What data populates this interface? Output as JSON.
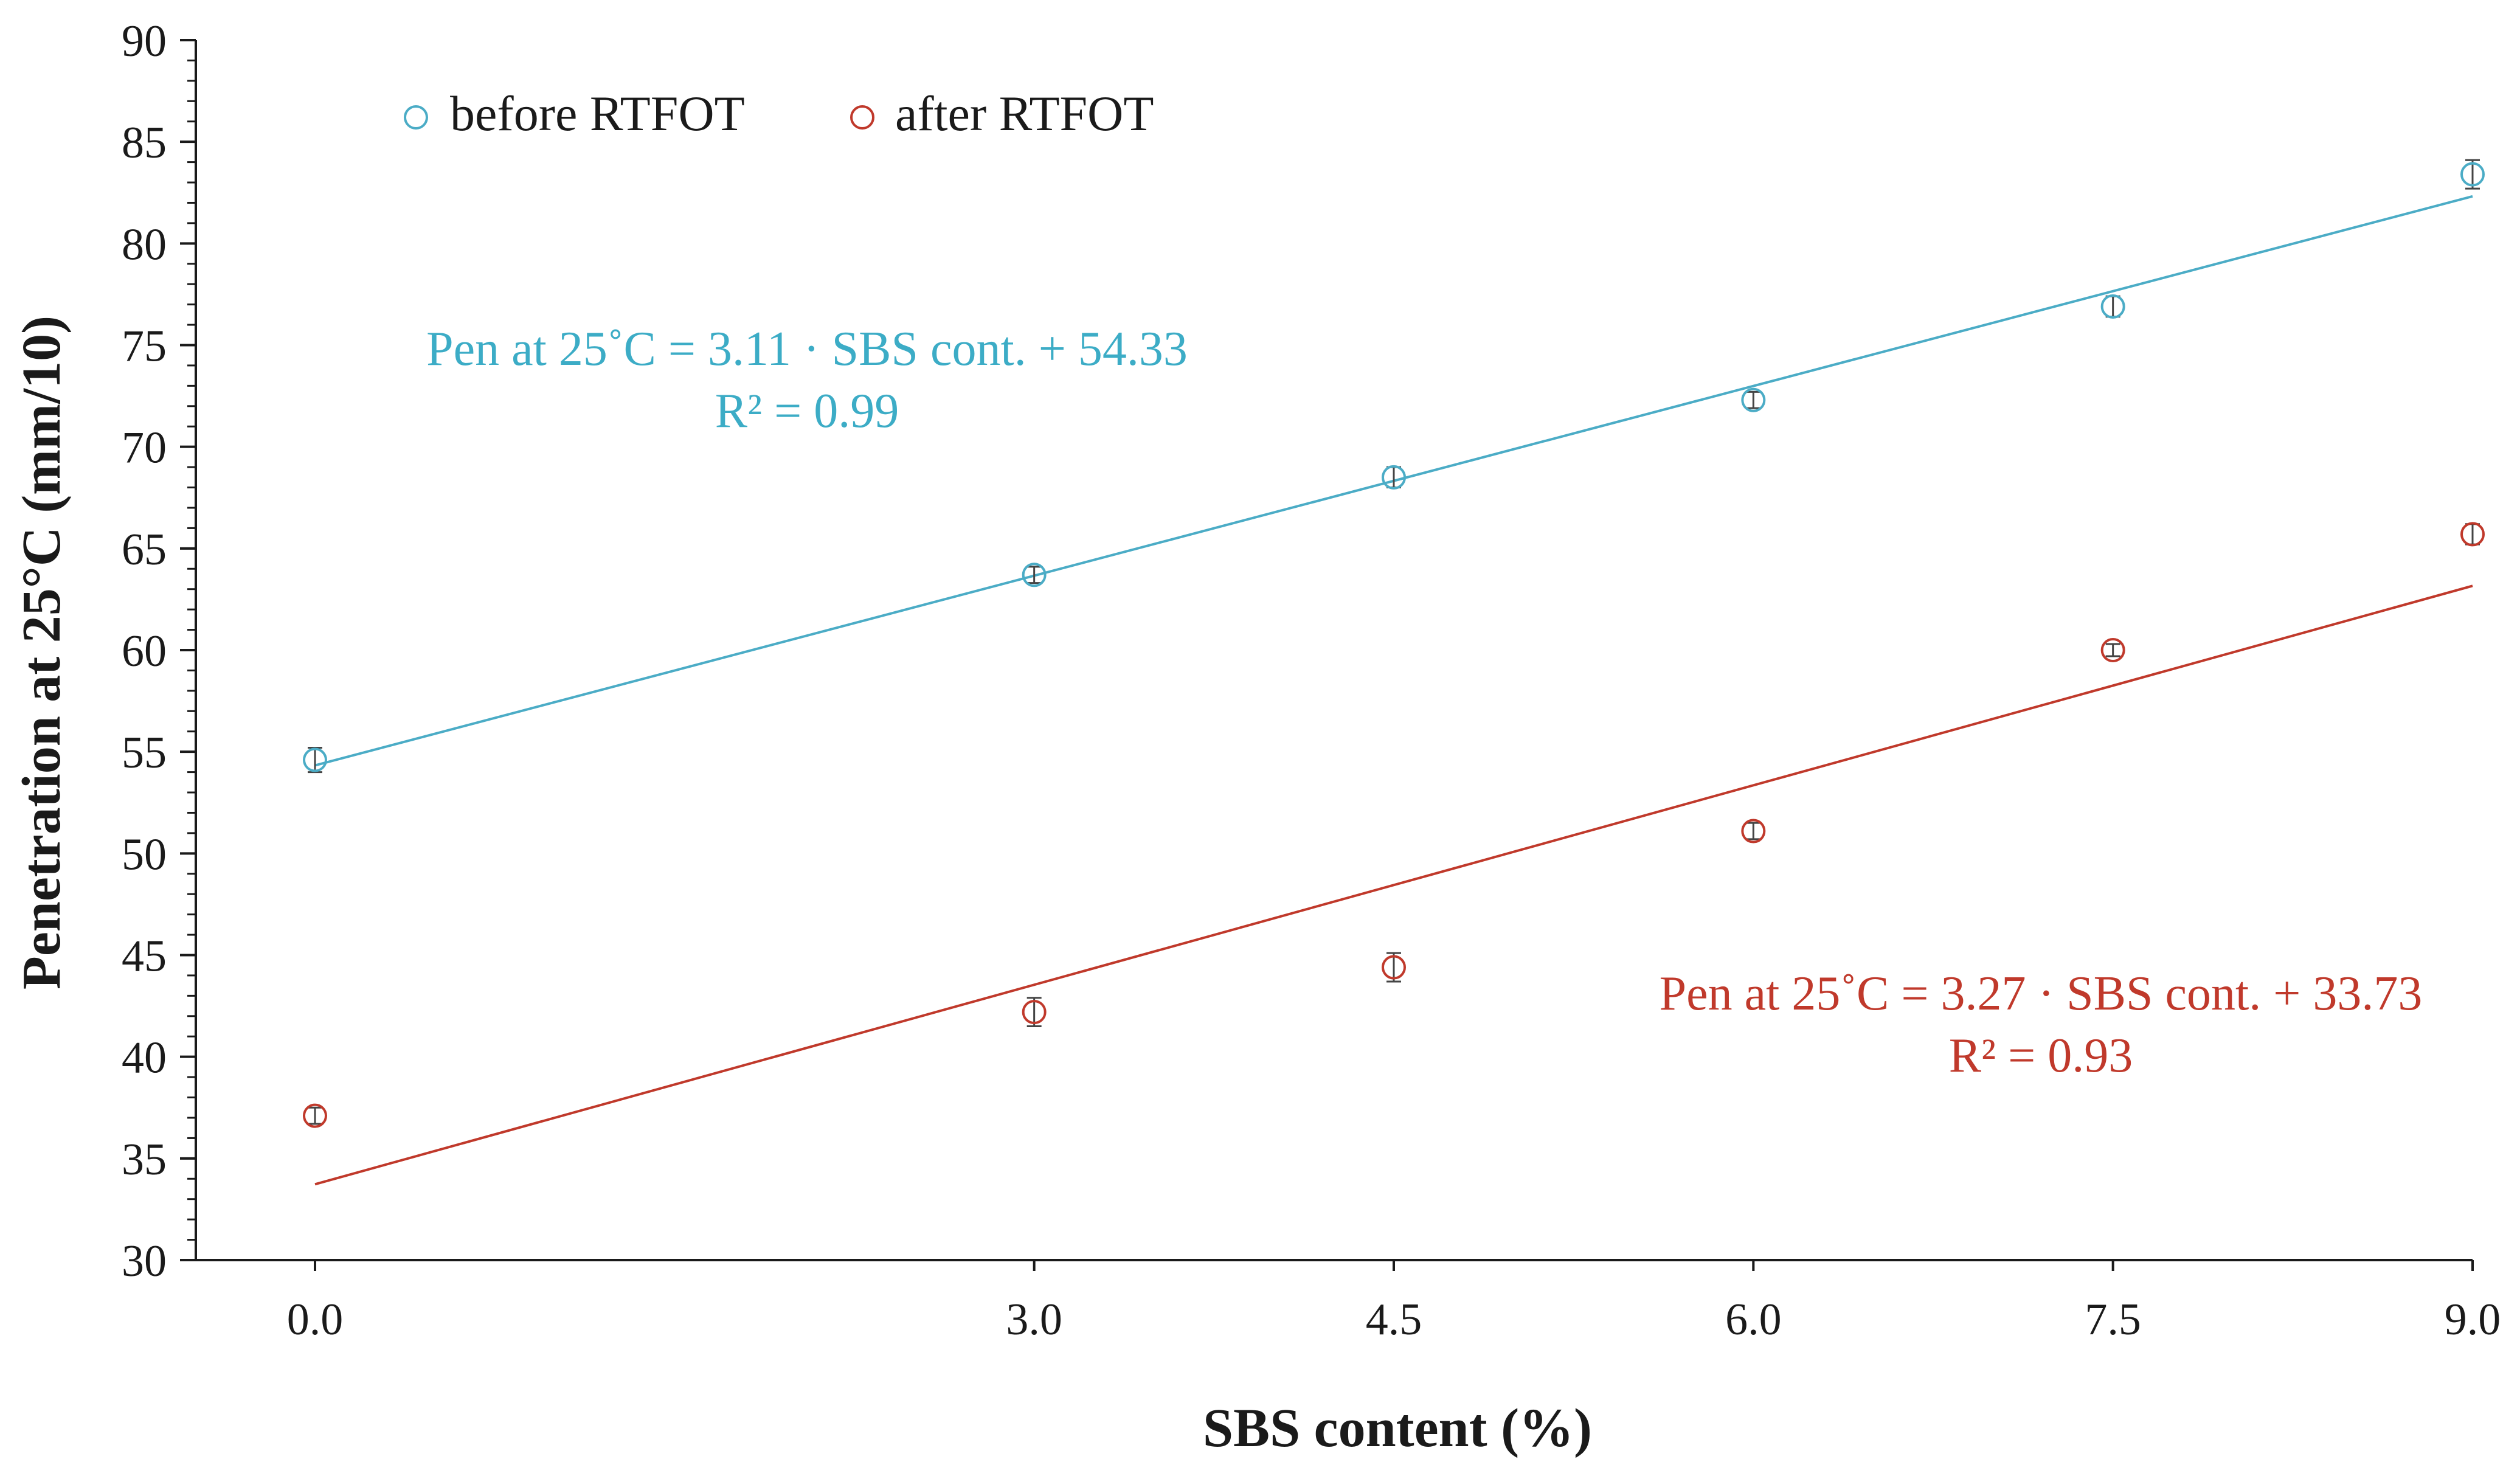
{
  "chart_data": {
    "type": "scatter",
    "title": "",
    "xlabel": "SBS content (%)",
    "ylabel": "Penetration at 25°C (mm/10)",
    "xlim": [
      -0.5,
      9.0
    ],
    "ylim": [
      30,
      90
    ],
    "x_ticks": [
      0.0,
      3.0,
      4.5,
      6.0,
      7.5,
      9.0
    ],
    "x_tick_labels": [
      "0.0",
      "3.0",
      "4.5",
      "6.0",
      "7.5",
      "9.0"
    ],
    "y_ticks": [
      30,
      35,
      40,
      45,
      50,
      55,
      60,
      65,
      70,
      75,
      80,
      85,
      90
    ],
    "y_tick_labels": [
      "30",
      "35",
      "40",
      "45",
      "50",
      "55",
      "60",
      "65",
      "70",
      "75",
      "80",
      "85",
      "90"
    ],
    "grid": false,
    "legend_position": "top-left",
    "series": [
      {
        "name": "before RTFOT",
        "color": "#4bacc6",
        "marker": "open-circle",
        "x": [
          0.0,
          3.0,
          4.5,
          6.0,
          7.5,
          9.0
        ],
        "y": [
          54.6,
          63.7,
          68.5,
          72.3,
          76.9,
          83.4
        ],
        "error": [
          0.6,
          0.4,
          0.5,
          0.4,
          0.5,
          0.7
        ],
        "trendline": {
          "slope": 3.11,
          "intercept": 54.33,
          "equation": "Pen at 25˚C = 3.11 · SBS  cont. + 54.33",
          "r2": "R² = 0.99"
        }
      },
      {
        "name": "after RTFOT",
        "color": "#c0392b",
        "marker": "open-circle",
        "x": [
          0.0,
          3.0,
          4.5,
          6.0,
          7.5,
          9.0
        ],
        "y": [
          37.1,
          42.2,
          44.4,
          51.1,
          60.0,
          65.7
        ],
        "error": [
          0.4,
          0.7,
          0.7,
          0.4,
          0.3,
          0.5
        ],
        "trendline": {
          "slope": 3.27,
          "intercept": 33.73,
          "equation": "Pen at 25˚C  = 3.27 · SBS  cont. + 33.73",
          "r2": "R² = 0.93"
        }
      }
    ]
  }
}
